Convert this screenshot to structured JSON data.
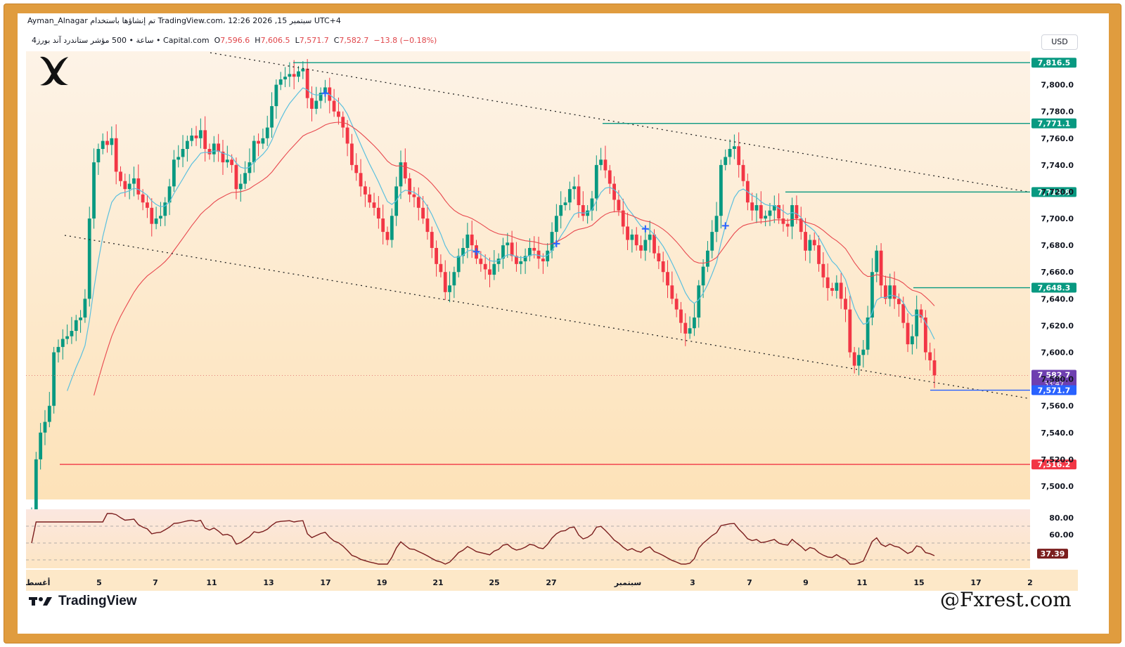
{
  "header": {
    "line1": "Ayman_Alnagar تم إنشاؤها باستخدام TradingView.com، 12:26 2026 ,15 سبتمبر UTC+4",
    "symbol": "4ساعة • 500 مؤشر ستاندرد آند بورز • Capital.com",
    "o_label": "O",
    "o_value": "7,596.6",
    "h_label": "H",
    "h_value": "7,606.5",
    "l_label": "L",
    "l_value": "7,571.7",
    "c_label": "C",
    "c_value": "7,582.7",
    "change": "−13.8 (−0.18%)",
    "currency": "USD"
  },
  "footer": {
    "tradingview": "TradingView",
    "brand": "@Fxrest.com"
  },
  "colors": {
    "frame": "#e09c3e",
    "up": "#089981",
    "down": "#f23645",
    "fast_ma": "#5bc0de",
    "slow_ma": "#e8494f",
    "bg_top": "#fdf3e7",
    "bg_bottom": "#fde2b8"
  },
  "chart_data": {
    "type": "candlestick",
    "title": "",
    "y_ticks": [
      "7,800.0",
      "7,780.0",
      "7,760.0",
      "7,740.0",
      "7,720.0",
      "7,700.0",
      "7,680.0",
      "7,660.0",
      "7,640.0",
      "7,620.0",
      "7,600.0",
      "7,580.0",
      "7,560.0",
      "7,540.0",
      "7,520.0",
      "7,500.0"
    ],
    "y_range": [
      7490,
      7825
    ],
    "x_ticks": [
      "أغسطس",
      "5",
      "7",
      "11",
      "13",
      "17",
      "19",
      "21",
      "25",
      "27",
      "سبتمبر",
      "3",
      "7",
      "9",
      "11",
      "15",
      "17",
      "2"
    ],
    "level_labels": [
      {
        "value": 7816.5,
        "label": "7,816.5",
        "color": "#089981"
      },
      {
        "value": 7771.1,
        "label": "7,771.1",
        "color": "#089981"
      },
      {
        "value": 7719.8,
        "label": "7,719.8",
        "color": "#089981"
      },
      {
        "value": 7648.3,
        "label": "7,648.3",
        "color": "#089981"
      },
      {
        "value": 7516.2,
        "label": "7,516.2",
        "color": "#f23645"
      }
    ],
    "last_price": {
      "value": 7582.7,
      "label": "7,582.7",
      "countdown": "33:47"
    },
    "low_marker": {
      "value": 7571.7,
      "label": "7,571.7"
    },
    "close_series": [
      7480,
      7520,
      7540,
      7548,
      7560,
      7600,
      7604,
      7610,
      7612,
      7616,
      7624,
      7626,
      7640,
      7700,
      7742,
      7752,
      7758,
      7755,
      7760,
      7735,
      7728,
      7722,
      7726,
      7730,
      7718,
      7712,
      7708,
      7696,
      7700,
      7702,
      7712,
      7724,
      7744,
      7746,
      7752,
      7758,
      7762,
      7760,
      7766,
      7752,
      7748,
      7756,
      7750,
      7742,
      7744,
      7740,
      7722,
      7726,
      7734,
      7742,
      7758,
      7756,
      7760,
      7768,
      7784,
      7800,
      7804,
      7806,
      7808,
      7806,
      7810,
      7812,
      7790,
      7782,
      7788,
      7794,
      7798,
      7788,
      7780,
      7776,
      7768,
      7756,
      7740,
      7734,
      7724,
      7718,
      7712,
      7708,
      7700,
      7690,
      7684,
      7702,
      7724,
      7742,
      7730,
      7718,
      7716,
      7708,
      7700,
      7690,
      7678,
      7666,
      7660,
      7645,
      7650,
      7660,
      7672,
      7678,
      7688,
      7680,
      7670,
      7666,
      7662,
      7658,
      7666,
      7670,
      7680,
      7682,
      7672,
      7666,
      7668,
      7672,
      7678,
      7676,
      7670,
      7668,
      7676,
      7690,
      7702,
      7710,
      7712,
      7722,
      7724,
      7710,
      7702,
      7706,
      7715,
      7740,
      7744,
      7736,
      7726,
      7714,
      7706,
      7694,
      7684,
      7688,
      7680,
      7676,
      7684,
      7688,
      7674,
      7668,
      7660,
      7650,
      7640,
      7632,
      7622,
      7614,
      7618,
      7626,
      7650,
      7664,
      7676,
      7690,
      7702,
      7740,
      7746,
      7752,
      7754,
      7740,
      7728,
      7712,
      7706,
      7710,
      7700,
      7702,
      7706,
      7710,
      7700,
      7696,
      7694,
      7710,
      7700,
      7690,
      7676,
      7684,
      7680,
      7666,
      7656,
      7648,
      7646,
      7652,
      7640,
      7632,
      7600,
      7590,
      7598,
      7602,
      7626,
      7660,
      7676,
      7650,
      7640,
      7650,
      7640,
      7636,
      7622,
      7606,
      7612,
      7632,
      7626,
      7600,
      7594,
      7582.7
    ],
    "rsi": {
      "ticks": [
        "80.00",
        "60.00"
      ],
      "last": "37.39",
      "range": [
        0,
        100
      ],
      "bands": [
        70,
        50,
        30
      ]
    }
  }
}
